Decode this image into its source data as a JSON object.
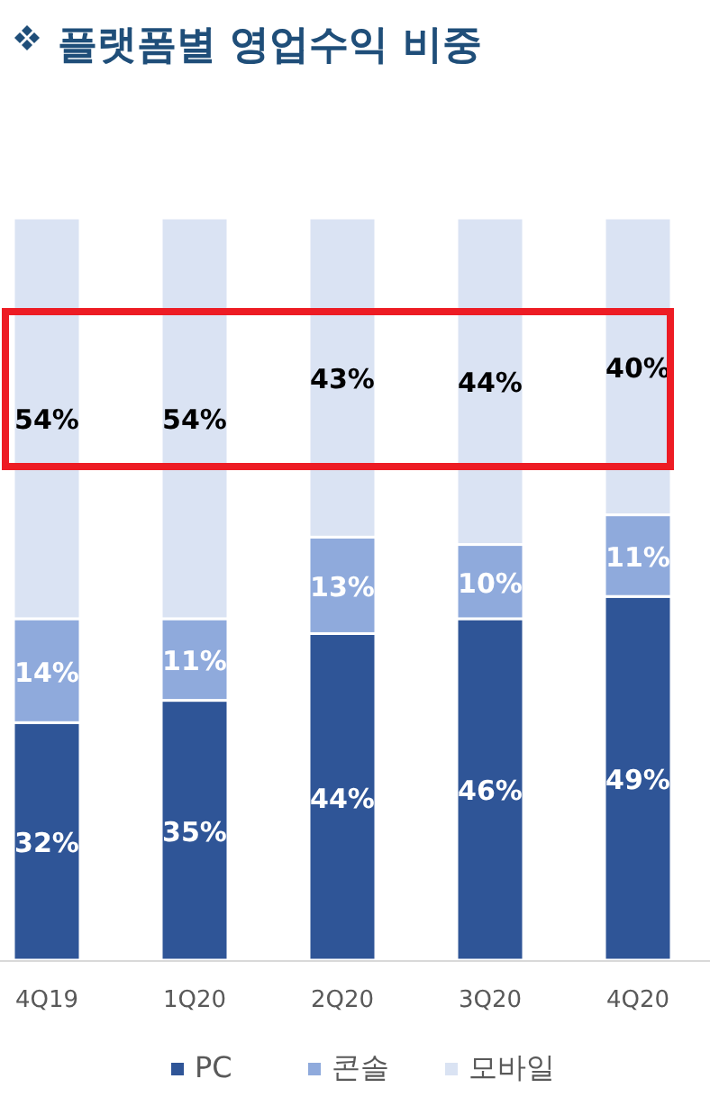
{
  "chart_data": {
    "type": "bar",
    "title": "플랫폼별 영업수익 비중",
    "stacked": true,
    "legend": "bottom",
    "categories": [
      "4Q19",
      "1Q20",
      "2Q20",
      "3Q20",
      "4Q20"
    ],
    "series": [
      {
        "name": "PC",
        "color": "#2f5597",
        "values": [
          32,
          35,
          44,
          46,
          49
        ],
        "value_labels": [
          "32%",
          "35%",
          "44%",
          "46%",
          "49%"
        ]
      },
      {
        "name": "콘솔",
        "color": "#8faadc",
        "values": [
          14,
          11,
          13,
          10,
          11
        ],
        "value_labels": [
          "14%",
          "11%",
          "13%",
          "10%",
          "11%"
        ]
      },
      {
        "name": "모바일",
        "color": "#dae3f3",
        "values": [
          54,
          54,
          43,
          44,
          40
        ],
        "value_labels": [
          "54%",
          "54%",
          "43%",
          "44%",
          "40%"
        ]
      }
    ]
  }
}
